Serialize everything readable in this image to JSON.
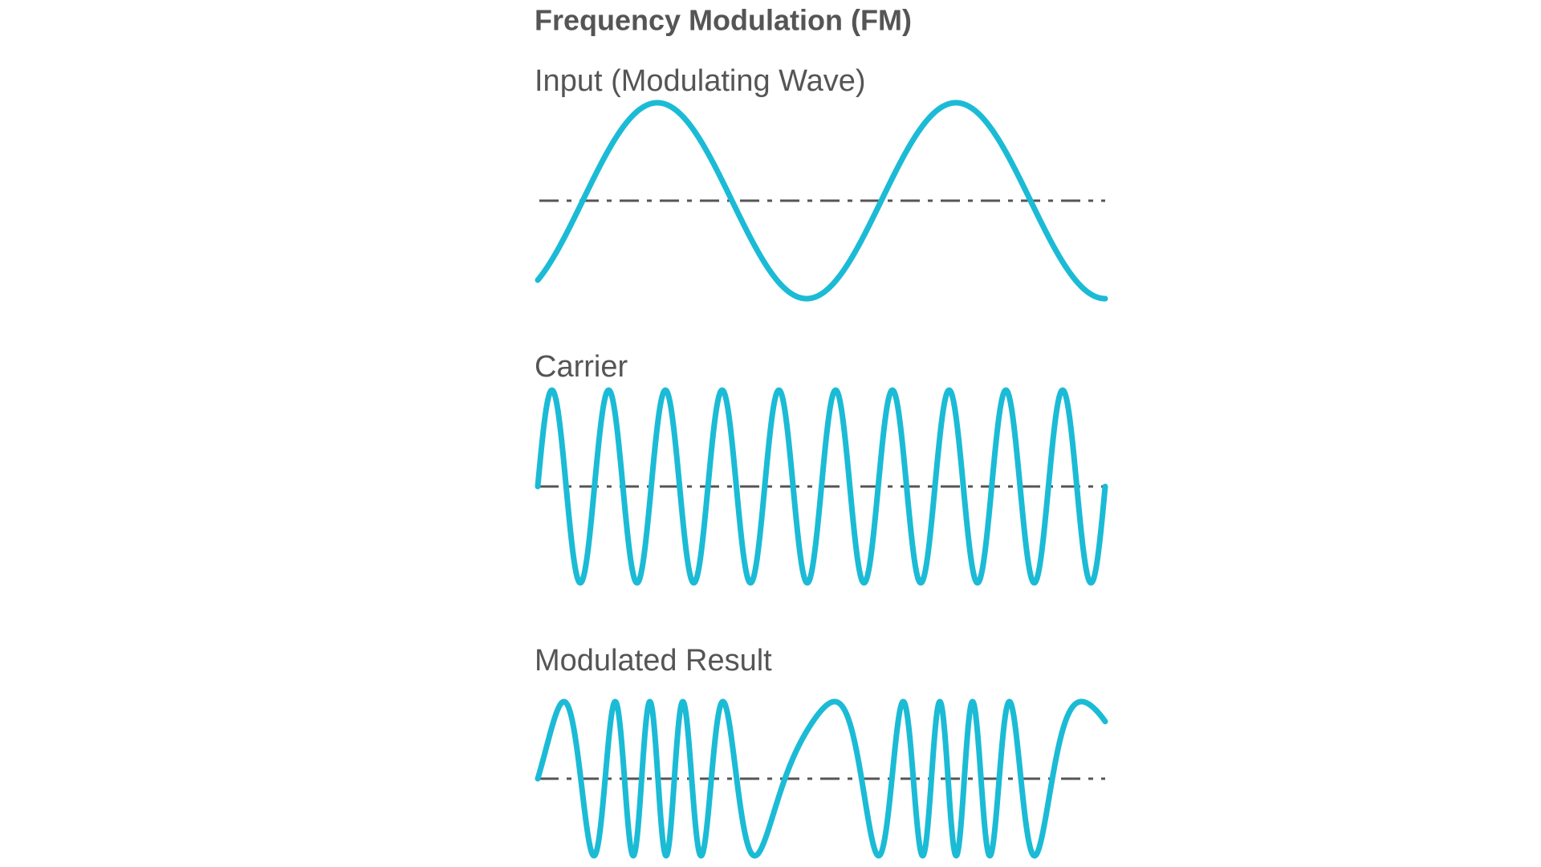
{
  "title": "Frequency Modulation (FM)",
  "panels": [
    {
      "label": "Input (Modulating Wave)"
    },
    {
      "label": "Carrier"
    },
    {
      "label": "Modulated Result"
    }
  ]
}
